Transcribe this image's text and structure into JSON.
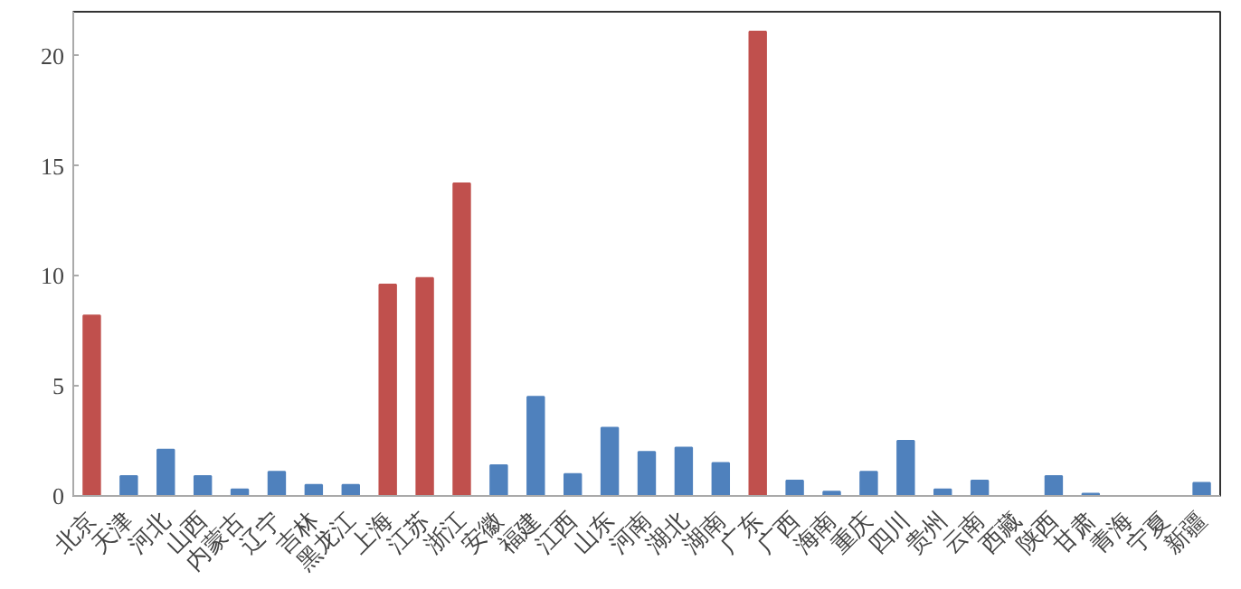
{
  "chart_data": {
    "type": "bar",
    "categories": [
      "北京",
      "天津",
      "河北",
      "山西",
      "内蒙古",
      "辽宁",
      "吉林",
      "黑龙江",
      "上海",
      "江苏",
      "浙江",
      "安徽",
      "福建",
      "江西",
      "山东",
      "河南",
      "湖北",
      "湖南",
      "广东",
      "广西",
      "海南",
      "重庆",
      "四川",
      "贵州",
      "云南",
      "西藏",
      "陕西",
      "甘肃",
      "青海",
      "宁夏",
      "新疆"
    ],
    "values": [
      8.2,
      0.9,
      2.1,
      0.9,
      0.3,
      1.1,
      0.5,
      0.5,
      9.6,
      9.9,
      14.2,
      1.4,
      4.5,
      1,
      3.1,
      2,
      2.2,
      1.5,
      21.1,
      0.7,
      0.2,
      1.1,
      2.5,
      0.3,
      0.7,
      0,
      0.9,
      0.1,
      0,
      0,
      0.6
    ],
    "colors": [
      "#c0504d",
      "#4f81bd",
      "#4f81bd",
      "#4f81bd",
      "#4f81bd",
      "#4f81bd",
      "#4f81bd",
      "#4f81bd",
      "#c0504d",
      "#c0504d",
      "#c0504d",
      "#4f81bd",
      "#4f81bd",
      "#4f81bd",
      "#4f81bd",
      "#4f81bd",
      "#4f81bd",
      "#4f81bd",
      "#c0504d",
      "#4f81bd",
      "#4f81bd",
      "#4f81bd",
      "#4f81bd",
      "#4f81bd",
      "#4f81bd",
      "#4f81bd",
      "#4f81bd",
      "#4f81bd",
      "#4f81bd",
      "#4f81bd",
      "#4f81bd"
    ],
    "ylim": [
      0,
      22
    ],
    "yticks": [
      0,
      5,
      10,
      15,
      20
    ],
    "grid": false
  }
}
